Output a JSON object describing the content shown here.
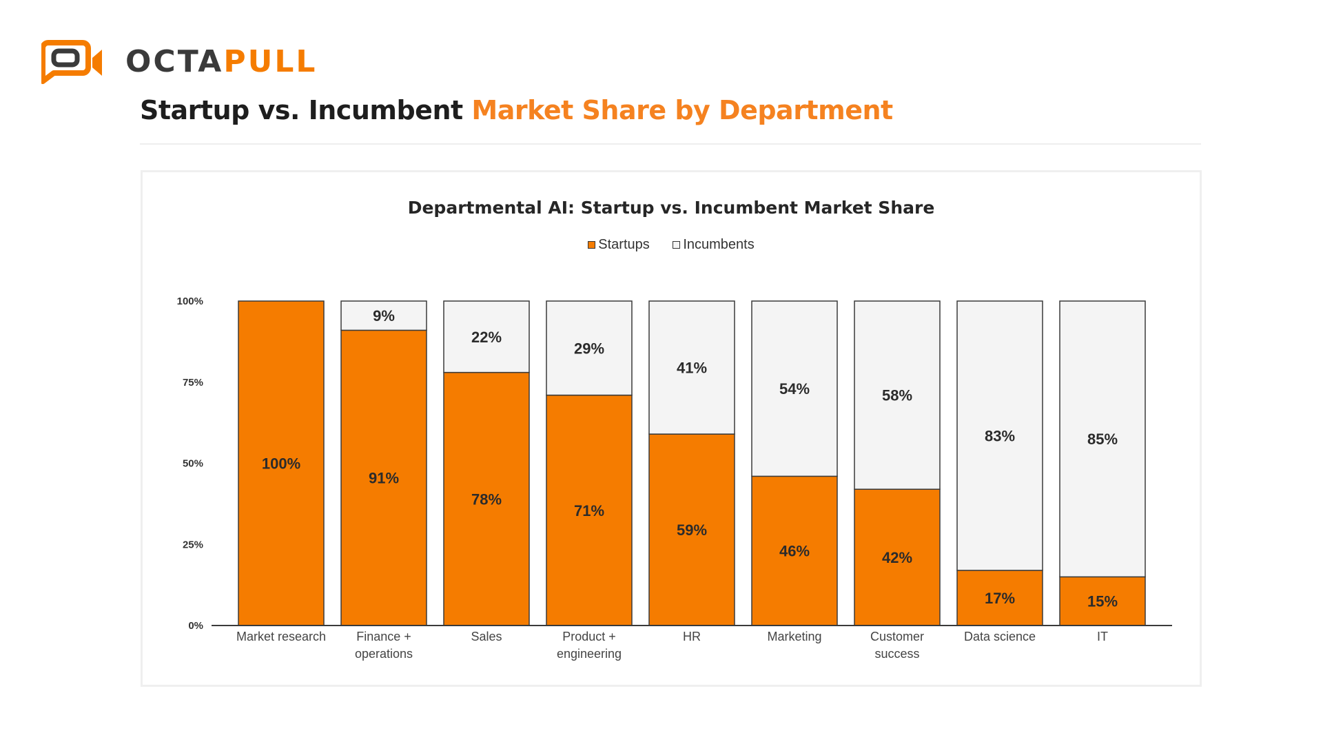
{
  "brand": {
    "name_dark": "OCTA",
    "name_accent": "PULL",
    "accent_color": "#f57c00"
  },
  "header": {
    "title_dark": "Startup vs. Incumbent ",
    "title_accent": "Market Share by Department"
  },
  "chart_data": {
    "type": "bar",
    "stacked": true,
    "title": "Departmental AI: Startup vs. Incumbent Market Share",
    "categories": [
      "Market research",
      "Finance + operations",
      "Sales",
      "Product + engineering",
      "HR",
      "Marketing",
      "Customer success",
      "Data science",
      "IT"
    ],
    "category_lines": [
      [
        "Market research"
      ],
      [
        "Finance +",
        "operations"
      ],
      [
        "Sales"
      ],
      [
        "Product +",
        "engineering"
      ],
      [
        "HR"
      ],
      [
        "Marketing"
      ],
      [
        "Customer",
        "success"
      ],
      [
        "Data science"
      ],
      [
        "IT"
      ]
    ],
    "series": [
      {
        "name": "Startups",
        "values": [
          100,
          91,
          78,
          71,
          59,
          46,
          42,
          17,
          15
        ],
        "color": "#f57c00"
      },
      {
        "name": "Incumbents",
        "values": [
          0,
          9,
          22,
          29,
          41,
          54,
          58,
          83,
          85
        ],
        "color": "#f4f4f4"
      }
    ],
    "data_labels": [
      [
        "100%",
        "91%",
        "78%",
        "71%",
        "59%",
        "46%",
        "42%",
        "17%",
        "15%"
      ],
      [
        "",
        "9%",
        "22%",
        "29%",
        "41%",
        "54%",
        "58%",
        "83%",
        "85%"
      ]
    ],
    "y_ticks": [
      "0%",
      "25%",
      "50%",
      "75%",
      "100%"
    ],
    "ylim": [
      0,
      100
    ],
    "legend_position": "top-center",
    "grid": false
  }
}
